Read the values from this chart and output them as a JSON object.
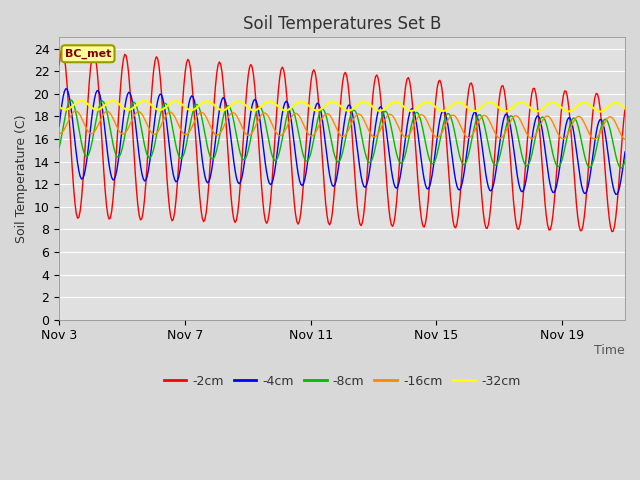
{
  "title": "Soil Temperatures Set B",
  "xlabel": "Time",
  "ylabel": "Soil Temperature (C)",
  "ylim": [
    0,
    25
  ],
  "yticks": [
    0,
    2,
    4,
    6,
    8,
    10,
    12,
    14,
    16,
    18,
    20,
    22,
    24
  ],
  "annotation_text": "BC_met",
  "colors": {
    "-2cm": "#ff0000",
    "-4cm": "#0000ff",
    "-8cm": "#00bb00",
    "-16cm": "#ff8800",
    "-32cm": "#ffff00"
  },
  "fig_bg": "#d8d8d8",
  "plot_bg": "#e0e0e0",
  "grid_color": "#ffffff",
  "title_fontsize": 12,
  "axis_label_fontsize": 9,
  "legend_fontsize": 9,
  "x_tick_days": [
    0,
    4,
    8,
    12,
    16
  ],
  "x_tick_labels": [
    "Nov 3",
    "Nov 7",
    "Nov 11",
    "Nov 15",
    "Nov 19"
  ]
}
